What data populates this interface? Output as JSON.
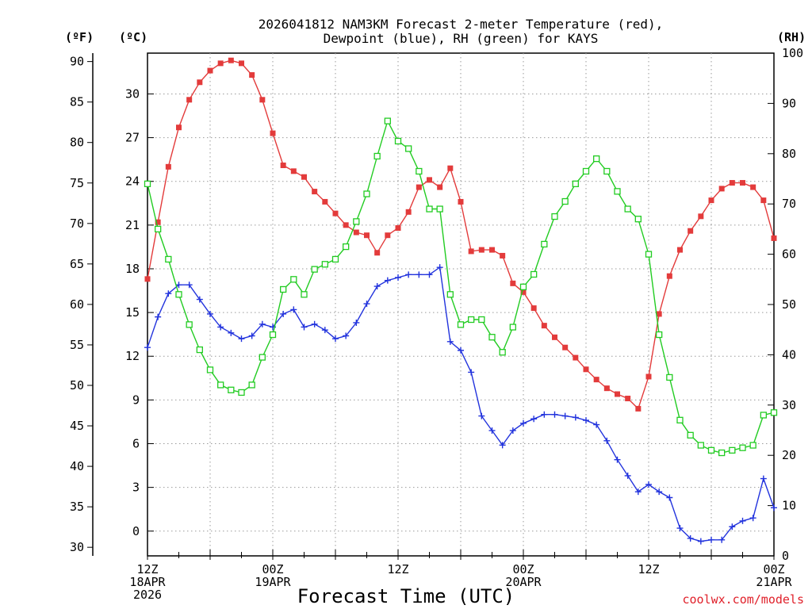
{
  "chart_data": {
    "type": "line",
    "title": [
      "2026041812 NAM3KM Forecast 2-meter Temperature (red),",
      "Dewpoint (blue), RH (green) for KAYS"
    ],
    "xlabel": "Forecast Time (UTC)",
    "credit": "coolwx.com/models",
    "unit_labels": {
      "left_f": "(ºF)",
      "left_c": "(ºC)",
      "right_rh": "(RH)"
    },
    "x_unit": "forecast hour",
    "xlim": [
      0,
      60
    ],
    "x_ticks": [
      {
        "x": 0,
        "lines": [
          "12Z",
          "18APR",
          "2026"
        ]
      },
      {
        "x": 12,
        "lines": [
          "00Z",
          "19APR"
        ]
      },
      {
        "x": 24,
        "lines": [
          "12Z"
        ]
      },
      {
        "x": 36,
        "lines": [
          "00Z",
          "20APR"
        ]
      },
      {
        "x": 48,
        "lines": [
          "12Z"
        ]
      },
      {
        "x": 60,
        "lines": [
          "00Z",
          "21APR"
        ]
      }
    ],
    "temp_c_axis": {
      "ylim": [
        -1.7,
        32.8
      ],
      "ticks": [
        0,
        3,
        6,
        9,
        12,
        15,
        18,
        21,
        24,
        27,
        30
      ]
    },
    "temp_f_axis": {
      "ticks": [
        30,
        35,
        40,
        45,
        50,
        55,
        60,
        65,
        70,
        75,
        80,
        85,
        90
      ]
    },
    "rh_axis": {
      "ylim": [
        0,
        100
      ],
      "ticks": [
        0,
        10,
        20,
        30,
        40,
        50,
        60,
        70,
        80,
        90,
        100
      ]
    },
    "series": [
      {
        "name": "2-meter Temperature",
        "unit": "C",
        "color": "#e33b3b",
        "marker": "filled-square",
        "x": [
          0,
          1,
          2,
          3,
          4,
          5,
          6,
          7,
          8,
          9,
          10,
          11,
          12,
          13,
          14,
          15,
          16,
          17,
          18,
          19,
          20,
          21,
          22,
          23,
          24,
          25,
          26,
          27,
          28,
          29,
          30,
          31,
          32,
          33,
          34,
          35,
          36,
          37,
          38,
          39,
          40,
          41,
          42,
          43,
          44,
          45,
          46,
          47,
          48,
          49,
          50,
          51,
          52,
          53,
          54,
          55,
          56,
          57,
          58,
          59,
          60
        ],
        "values": [
          17.3,
          21.2,
          25.0,
          27.7,
          29.6,
          30.8,
          31.6,
          32.1,
          32.3,
          32.1,
          31.3,
          29.6,
          27.3,
          25.1,
          24.7,
          24.3,
          23.3,
          22.6,
          21.8,
          21.0,
          20.5,
          20.3,
          19.1,
          20.3,
          20.8,
          21.9,
          23.6,
          24.1,
          23.6,
          24.9,
          22.6,
          19.2,
          19.3,
          19.3,
          18.9,
          17.0,
          16.4,
          15.3,
          14.1,
          13.3,
          12.6,
          11.9,
          11.1,
          10.4,
          9.8,
          9.4,
          9.1,
          8.4,
          10.6,
          14.9,
          17.5,
          19.3,
          20.6,
          21.6,
          22.7,
          23.5,
          23.9,
          23.9,
          23.6,
          22.7,
          20.1
        ]
      },
      {
        "name": "Dewpoint",
        "unit": "C",
        "color": "#2233dd",
        "marker": "plus",
        "x": [
          0,
          1,
          2,
          3,
          4,
          5,
          6,
          7,
          8,
          9,
          10,
          11,
          12,
          13,
          14,
          15,
          16,
          17,
          18,
          19,
          20,
          21,
          22,
          23,
          24,
          25,
          26,
          27,
          28,
          29,
          30,
          31,
          32,
          33,
          34,
          35,
          36,
          37,
          38,
          39,
          40,
          41,
          42,
          43,
          44,
          45,
          46,
          47,
          48,
          49,
          50,
          51,
          52,
          53,
          54,
          55,
          56,
          57,
          58,
          59,
          60
        ],
        "values": [
          12.6,
          14.7,
          16.3,
          16.9,
          16.9,
          15.9,
          14.9,
          14.0,
          13.6,
          13.2,
          13.4,
          14.2,
          14.0,
          14.9,
          15.2,
          14.0,
          14.2,
          13.8,
          13.2,
          13.4,
          14.3,
          15.6,
          16.8,
          17.2,
          17.4,
          17.6,
          17.6,
          17.6,
          18.1,
          13.0,
          12.4,
          10.9,
          7.9,
          6.9,
          5.9,
          6.9,
          7.4,
          7.7,
          8.0,
          8.0,
          7.9,
          7.8,
          7.6,
          7.3,
          6.2,
          4.9,
          3.8,
          2.7,
          3.2,
          2.7,
          2.3,
          0.2,
          -0.5,
          -0.7,
          -0.6,
          -0.6,
          0.3,
          0.7,
          0.9,
          3.6,
          1.6
        ]
      },
      {
        "name": "RH",
        "unit": "%",
        "color": "#22cc22",
        "marker": "open-square",
        "x": [
          0,
          1,
          2,
          3,
          4,
          5,
          6,
          7,
          8,
          9,
          10,
          11,
          12,
          13,
          14,
          15,
          16,
          17,
          18,
          19,
          20,
          21,
          22,
          23,
          24,
          25,
          26,
          27,
          28,
          29,
          30,
          31,
          32,
          33,
          34,
          35,
          36,
          37,
          38,
          39,
          40,
          41,
          42,
          43,
          44,
          45,
          46,
          47,
          48,
          49,
          50,
          51,
          52,
          53,
          54,
          55,
          56,
          57,
          58,
          59,
          60
        ],
        "values": [
          74,
          65,
          59,
          52,
          46,
          41,
          37,
          34,
          33,
          32.5,
          34,
          39.5,
          44,
          53,
          55,
          52,
          57,
          58,
          59,
          61.5,
          66.5,
          72,
          79.5,
          86.5,
          82.5,
          81,
          76.5,
          69,
          69,
          52,
          46,
          47,
          47,
          43.5,
          40.5,
          45.5,
          53.5,
          56,
          62,
          67.5,
          70.5,
          74,
          76.5,
          79,
          76.5,
          72.5,
          69,
          67,
          60,
          44,
          35.5,
          27,
          24,
          22,
          21,
          20.5,
          21,
          21.5,
          22,
          28,
          28.5
        ]
      }
    ]
  }
}
